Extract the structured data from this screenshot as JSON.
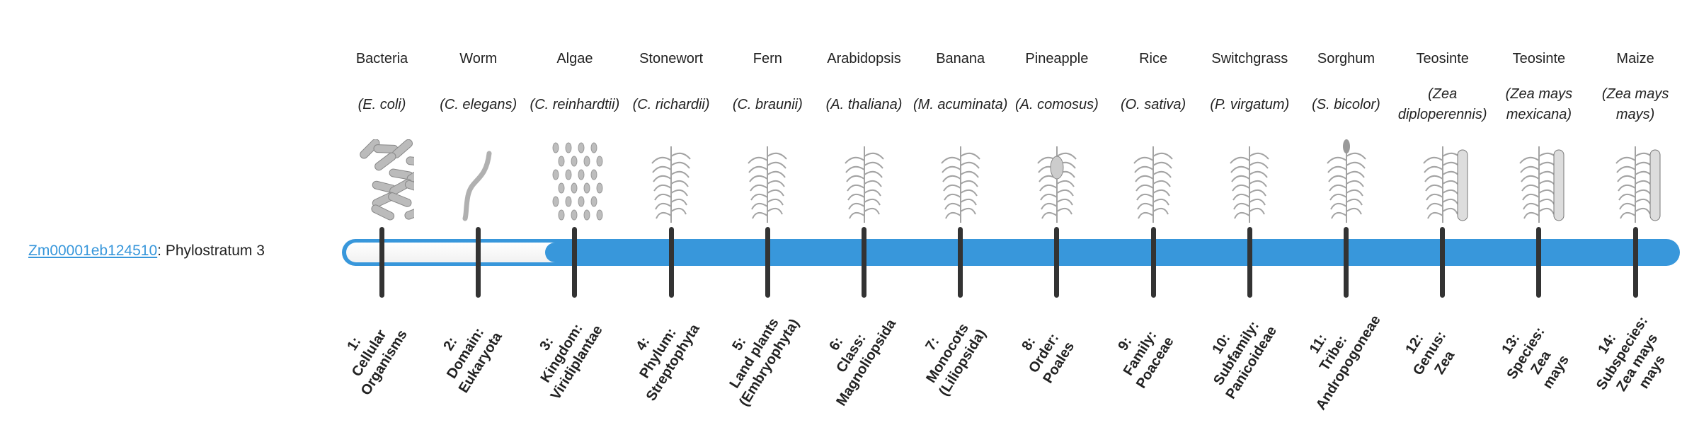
{
  "gene": {
    "id": "Zm00001eb124510",
    "suffix": ": Phylostratum 3",
    "phylostratum": 3,
    "total_strata": 14
  },
  "colors": {
    "accent": "#3897db",
    "tick": "#333333",
    "illustration": "#9a9a9a"
  },
  "organisms": [
    {
      "common": "Bacteria",
      "scientific": "(E. coli)",
      "icon": "bacteria-icon"
    },
    {
      "common": "Worm",
      "scientific": "(C. elegans)",
      "icon": "worm-icon"
    },
    {
      "common": "Algae",
      "scientific": "(C. reinhardtii)",
      "icon": "algae-icon"
    },
    {
      "common": "Stonewort",
      "scientific": "(C. richardii)",
      "icon": "stonewort-icon"
    },
    {
      "common": "Fern",
      "scientific": "(C. braunii)",
      "icon": "fern-icon"
    },
    {
      "common": "Arabidopsis",
      "scientific": "(A. thaliana)",
      "icon": "arabidopsis-icon"
    },
    {
      "common": "Banana",
      "scientific": "(M. acuminata)",
      "icon": "banana-icon"
    },
    {
      "common": "Pineapple",
      "scientific": "(A. comosus)",
      "icon": "pineapple-icon"
    },
    {
      "common": "Rice",
      "scientific": "(O. sativa)",
      "icon": "rice-icon"
    },
    {
      "common": "Switchgrass",
      "scientific": "(P. virgatum)",
      "icon": "switchgrass-icon"
    },
    {
      "common": "Sorghum",
      "scientific": "(S. bicolor)",
      "icon": "sorghum-icon"
    },
    {
      "common": "Teosinte",
      "scientific": "(Zea diploperennis)",
      "icon": "teosinte-icon"
    },
    {
      "common": "Teosinte",
      "scientific": "(Zea mays mexicana)",
      "icon": "teosinte-icon"
    },
    {
      "common": "Maize",
      "scientific": "(Zea mays mays)",
      "icon": "maize-icon"
    }
  ],
  "strata": [
    {
      "lines": [
        "1:",
        "Cellular",
        "Organisms"
      ]
    },
    {
      "lines": [
        "2:",
        "Domain:",
        "Eukaryota"
      ]
    },
    {
      "lines": [
        "3:",
        "Kingdom:",
        "Viridiplantae"
      ]
    },
    {
      "lines": [
        "4:",
        "Phylum:",
        "Streptophyta"
      ]
    },
    {
      "lines": [
        "5:",
        "Land plants",
        "(Embryophyta)"
      ]
    },
    {
      "lines": [
        "6:",
        "Class:",
        "Magnoliopsida"
      ]
    },
    {
      "lines": [
        "7:",
        "Monocots",
        "(Liliopsida)"
      ]
    },
    {
      "lines": [
        "8:",
        "Order:",
        "Poales"
      ]
    },
    {
      "lines": [
        "9:",
        "Family:",
        "Poaceae"
      ]
    },
    {
      "lines": [
        "10:",
        "Subfamily:",
        "Panicoideae"
      ]
    },
    {
      "lines": [
        "11:",
        "Tribe:",
        "Andropogoneae"
      ]
    },
    {
      "lines": [
        "12:",
        "Genus:",
        "Zea"
      ]
    },
    {
      "lines": [
        "13:",
        "Species:",
        "Zea",
        "mays"
      ]
    },
    {
      "lines": [
        "14:",
        "Subspecies:",
        "Zea mays",
        "mays"
      ]
    }
  ]
}
